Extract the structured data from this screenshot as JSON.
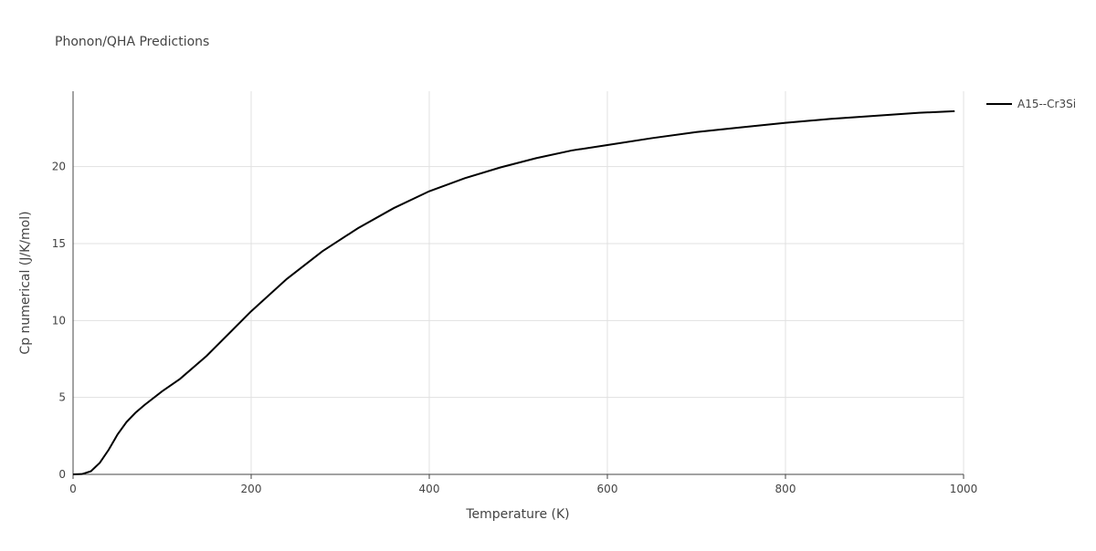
{
  "chart_data": {
    "type": "line",
    "title": "Phonon/QHA Predictions",
    "x_label": "Temperature (K)",
    "y_label": "Cp numerical (J/K/mol)",
    "x": [
      0,
      10,
      20,
      30,
      40,
      50,
      60,
      70,
      80,
      100,
      120,
      150,
      200,
      240,
      280,
      320,
      360,
      400,
      440,
      480,
      520,
      560,
      600,
      650,
      700,
      750,
      800,
      850,
      900,
      950,
      990
    ],
    "series": [
      {
        "name": "A15--Cr3Si",
        "color": "#000000",
        "values": [
          0,
          0.02,
          0.2,
          0.75,
          1.6,
          2.6,
          3.4,
          4.0,
          4.5,
          5.4,
          6.2,
          7.7,
          10.6,
          12.7,
          14.5,
          16.0,
          17.3,
          18.4,
          19.25,
          19.95,
          20.55,
          21.05,
          21.4,
          21.85,
          22.25,
          22.55,
          22.85,
          23.1,
          23.3,
          23.5,
          23.6
        ]
      }
    ],
    "xlim": [
      0,
      1000
    ],
    "xticks": [
      0,
      200,
      400,
      600,
      800,
      1000
    ],
    "ylim": [
      0,
      24.9
    ],
    "yticks": [
      0,
      5,
      10,
      15,
      20
    ],
    "grid": true
  }
}
